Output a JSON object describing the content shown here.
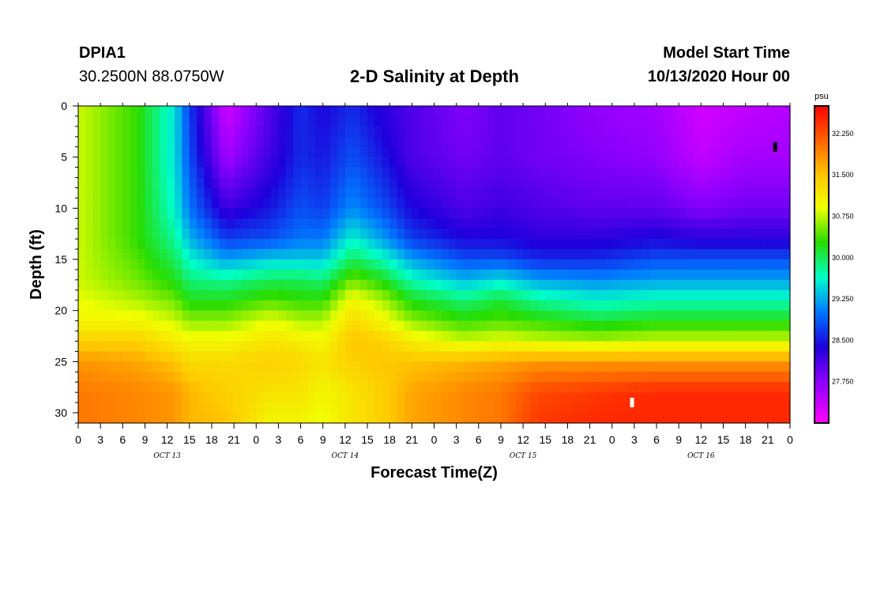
{
  "header": {
    "station_id": "DPIA1",
    "coordinates": "30.2500N 88.0750W",
    "title": "2-D Salinity at Depth",
    "start_label": "Model Start Time",
    "start_value": "10/13/2020 Hour 00"
  },
  "chart_data": {
    "type": "heatmap",
    "title": "2-D Salinity at Depth",
    "xlabel": "Forecast Time(Z)",
    "ylabel": "Depth (ft)",
    "x_range_hours": [
      0,
      96
    ],
    "y_range_ft": [
      0,
      31
    ],
    "x_tick_labels": [
      "0",
      "3",
      "6",
      "9",
      "12",
      "15",
      "18",
      "21",
      "0",
      "3",
      "6",
      "9",
      "12",
      "15",
      "18",
      "21",
      "0",
      "3",
      "6",
      "9",
      "12",
      "15",
      "18",
      "21",
      "0",
      "3",
      "6",
      "9",
      "12",
      "15",
      "18",
      "21",
      "0"
    ],
    "day_labels": [
      {
        "label": "OCT 13",
        "hour": 12
      },
      {
        "label": "OCT 14",
        "hour": 36
      },
      {
        "label": "OCT 15",
        "hour": 60
      },
      {
        "label": "OCT 16",
        "hour": 84
      }
    ],
    "y_ticks": [
      0,
      5,
      10,
      15,
      20,
      25,
      30
    ],
    "colorbar": {
      "units": "psu",
      "min": 27.0,
      "max": 32.75,
      "tick_labels": [
        "32.250",
        "31.500",
        "30.750",
        "30.000",
        "29.250",
        "28.500",
        "27.750"
      ]
    },
    "depth_levels_ft": [
      0,
      5,
      10,
      13,
      15,
      17,
      19,
      21,
      23,
      25,
      28,
      31
    ],
    "salinity_profiles": [
      {
        "hour": 0,
        "values": [
          30.8,
          30.8,
          30.8,
          30.8,
          30.8,
          30.8,
          30.9,
          31.0,
          31.4,
          31.8,
          32.0,
          32.0
        ]
      },
      {
        "hour": 8,
        "values": [
          30.3,
          30.3,
          30.3,
          30.3,
          30.4,
          30.5,
          30.7,
          31.0,
          31.4,
          31.7,
          31.9,
          31.9
        ]
      },
      {
        "hour": 13,
        "values": [
          29.5,
          29.5,
          29.6,
          29.8,
          30.0,
          30.2,
          30.5,
          30.8,
          31.1,
          31.5,
          31.8,
          31.8
        ]
      },
      {
        "hour": 15,
        "values": [
          28.7,
          28.8,
          29.0,
          29.3,
          29.6,
          29.9,
          30.2,
          30.6,
          31.0,
          31.3,
          31.6,
          31.6
        ]
      },
      {
        "hour": 20,
        "values": [
          27.3,
          27.6,
          28.2,
          28.7,
          29.2,
          29.8,
          30.2,
          30.6,
          31.0,
          31.3,
          31.4,
          31.5
        ]
      },
      {
        "hour": 26,
        "values": [
          28.1,
          28.2,
          28.5,
          28.8,
          29.4,
          30.0,
          30.4,
          30.9,
          31.2,
          31.4,
          31.2,
          31.0
        ]
      },
      {
        "hour": 30,
        "values": [
          28.6,
          28.6,
          28.8,
          29.0,
          29.4,
          30.0,
          30.3,
          30.7,
          31.1,
          31.3,
          31.2,
          31.0
        ]
      },
      {
        "hour": 33,
        "values": [
          28.4,
          28.5,
          28.7,
          29.0,
          29.4,
          29.9,
          30.3,
          30.7,
          31.0,
          31.2,
          31.0,
          30.9
        ]
      },
      {
        "hour": 37,
        "values": [
          28.6,
          28.8,
          29.1,
          29.6,
          30.0,
          30.5,
          31.0,
          31.3,
          31.5,
          31.4,
          31.2,
          31.2
        ]
      },
      {
        "hour": 41,
        "values": [
          28.3,
          28.5,
          28.8,
          29.2,
          29.7,
          30.2,
          30.7,
          31.0,
          31.4,
          31.5,
          31.4,
          31.4
        ]
      },
      {
        "hour": 45,
        "values": [
          28.1,
          28.1,
          28.4,
          28.7,
          29.2,
          29.7,
          30.2,
          30.6,
          31.1,
          31.5,
          31.7,
          31.7
        ]
      },
      {
        "hour": 52,
        "values": [
          27.8,
          27.9,
          28.1,
          28.4,
          28.8,
          29.3,
          29.9,
          30.3,
          30.8,
          31.6,
          31.9,
          31.9
        ]
      },
      {
        "hour": 57,
        "values": [
          28.0,
          28.0,
          28.2,
          28.4,
          28.8,
          29.5,
          30.1,
          30.4,
          30.9,
          31.7,
          32.0,
          32.0
        ]
      },
      {
        "hour": 62,
        "values": [
          27.9,
          27.9,
          28.1,
          28.3,
          28.6,
          29.2,
          29.8,
          30.3,
          30.8,
          31.8,
          32.3,
          32.4
        ]
      },
      {
        "hour": 70,
        "values": [
          27.7,
          27.8,
          28.0,
          28.3,
          28.6,
          29.1,
          29.6,
          30.1,
          30.7,
          31.8,
          32.4,
          32.5
        ]
      },
      {
        "hour": 78,
        "values": [
          27.6,
          27.7,
          28.0,
          28.4,
          28.8,
          29.2,
          29.7,
          30.2,
          30.8,
          31.8,
          32.5,
          32.5
        ]
      },
      {
        "hour": 84,
        "values": [
          27.3,
          27.4,
          27.8,
          28.3,
          28.8,
          29.2,
          29.7,
          30.2,
          30.8,
          31.8,
          32.5,
          32.5
        ]
      },
      {
        "hour": 90,
        "values": [
          27.4,
          27.6,
          27.9,
          28.3,
          28.8,
          29.2,
          29.7,
          30.2,
          30.8,
          31.8,
          32.5,
          32.5
        ]
      },
      {
        "hour": 96,
        "values": [
          27.5,
          27.6,
          27.9,
          28.3,
          28.8,
          29.2,
          29.7,
          30.2,
          30.8,
          31.8,
          32.5,
          32.5
        ]
      }
    ],
    "markers": [
      {
        "hour": 94,
        "depth": 4,
        "color": "#000000"
      },
      {
        "hour": 74.7,
        "depth": 29,
        "color": "#ffffff"
      }
    ]
  }
}
